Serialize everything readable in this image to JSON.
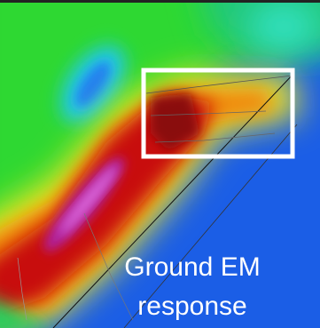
{
  "image": {
    "caption_lines": [
      "Ground EM",
      "response"
    ]
  }
}
